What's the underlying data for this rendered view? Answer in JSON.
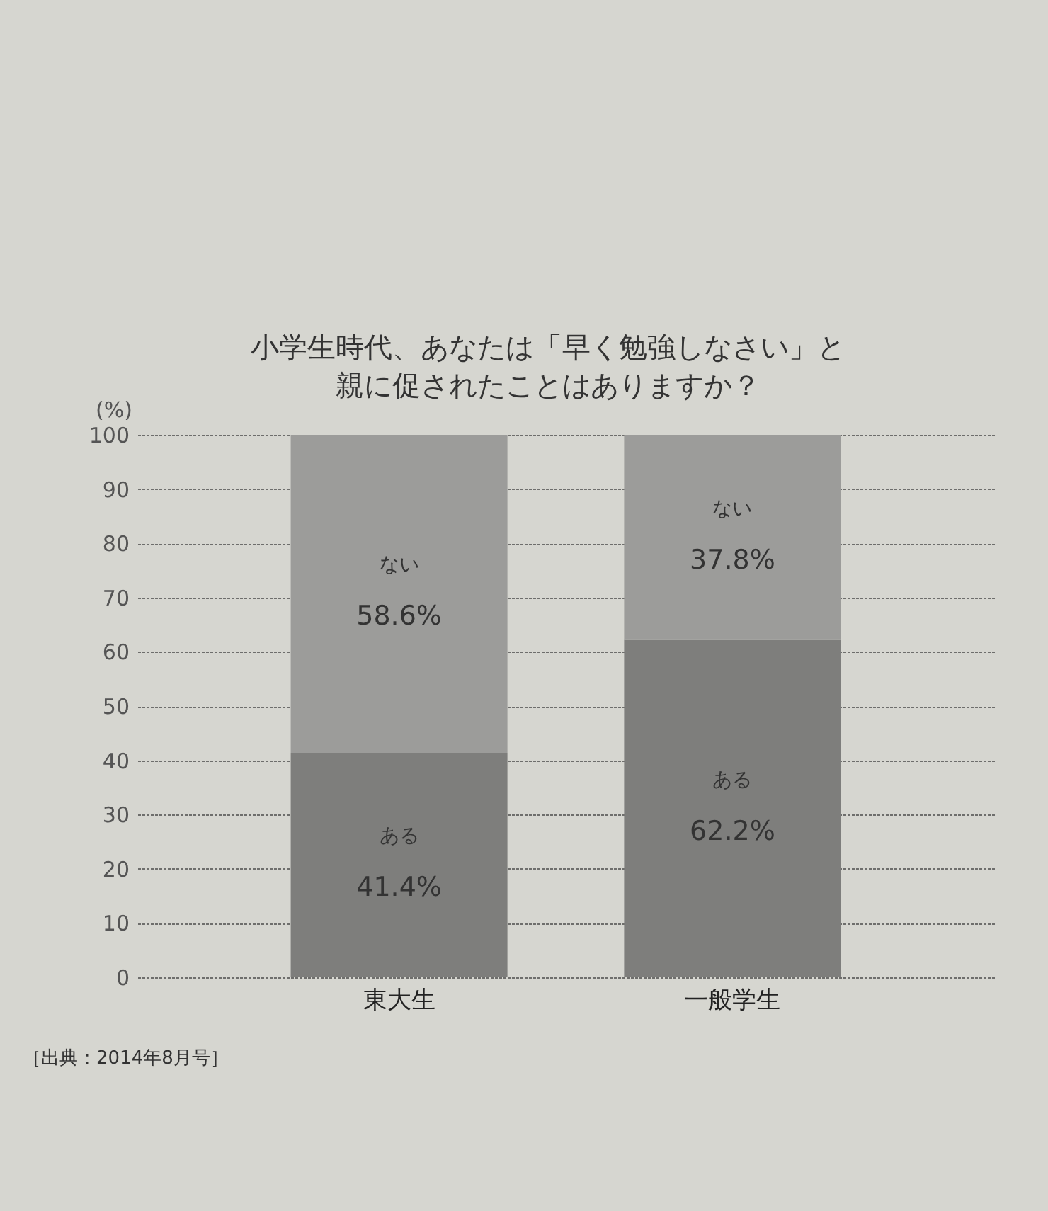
{
  "chart_data": {
    "type": "bar",
    "stacked": true,
    "title": "小学生時代、あなたは「早く勉強しなさい」と親に促されたことはありますか？",
    "ylabel": "(%)",
    "annotations": [
      "［出典：2014年8月号］"
    ],
    "categories": [
      "東大生",
      "一般学生"
    ],
    "series": [
      {
        "name": "ある",
        "color": "#7e7e7c",
        "values": [
          41.4,
          62.2
        ],
        "value_labels": [
          "41.4%",
          "62.2%"
        ]
      },
      {
        "name": "ない",
        "color": "#9c9c9a",
        "values": [
          58.6,
          37.8
        ],
        "value_labels": [
          "58.6%",
          "37.8%"
        ]
      }
    ],
    "ylim": [
      0,
      100
    ],
    "yticks": [
      0,
      10,
      20,
      30,
      40,
      50,
      60,
      70,
      80,
      90,
      100
    ],
    "grid": "y"
  }
}
